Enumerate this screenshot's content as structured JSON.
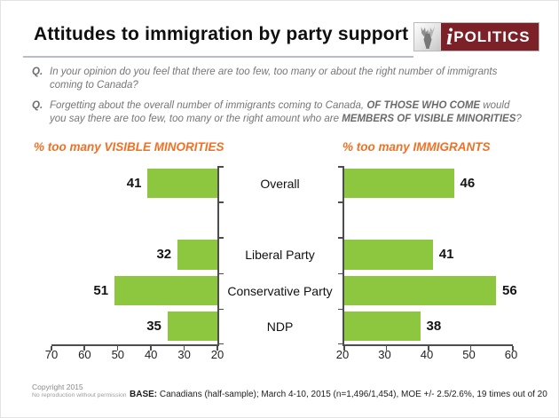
{
  "header": {
    "title": "Attitudes to immigration by party support",
    "logo": {
      "i": "i",
      "name": "POLITICS",
      "maroon": "#7C2128"
    }
  },
  "questions": {
    "q1": {
      "label": "Q.",
      "text": "In your opinion do you feel that there are too few, too many or about the right number of immigrants coming to Canada?"
    },
    "q2": {
      "label": "Q.",
      "part1": "Forgetting about the overall number of immigrants coming to Canada, ",
      "bold1": "OF THOSE WHO COME",
      "part2": " would you say there are too few, too many or the right amount who are ",
      "bold2": "MEMBERS OF VISIBLE MINORITIES",
      "part3": "?"
    }
  },
  "chart_data": [
    {
      "type": "bar",
      "title": "% too many VISIBLE MINORITIES",
      "anchor": "right",
      "categories": [
        "Overall",
        "Liberal Party",
        "Conservative Party",
        "NDP"
      ],
      "values": [
        41,
        32,
        51,
        35
      ],
      "axis_min": 20,
      "axis_max": 70,
      "ticks": [
        70,
        60,
        50,
        40,
        30,
        20
      ],
      "bar_color": "#8DC63F",
      "row_map": [
        0,
        null,
        1,
        2,
        3
      ],
      "grid": false,
      "value_labels": "outside-end"
    },
    {
      "type": "bar",
      "title": "% too many IMMIGRANTS",
      "anchor": "left",
      "categories": [
        "Overall",
        "Liberal Party",
        "Conservative Party",
        "NDP"
      ],
      "values": [
        46,
        41,
        56,
        38
      ],
      "axis_min": 20,
      "axis_max": 60,
      "ticks": [
        20,
        30,
        40,
        50,
        60
      ],
      "bar_color": "#8DC63F",
      "row_map": [
        0,
        null,
        1,
        2,
        3
      ],
      "grid": false,
      "value_labels": "outside-end"
    }
  ],
  "footer": {
    "copyright_line1": "Copyright 2015",
    "copyright_line2": "No reproduction without permission",
    "base_label": "BASE:",
    "base_text": " Canadians (half-sample); March 4-10, 2015 (n=1,496/1,454), MOE +/- 2.5/2.6%, 19 times out of 20"
  },
  "colors": {
    "bar_green": "#8DC63F",
    "accent_orange": "#EE7125",
    "logo_maroon": "#7C2128"
  }
}
